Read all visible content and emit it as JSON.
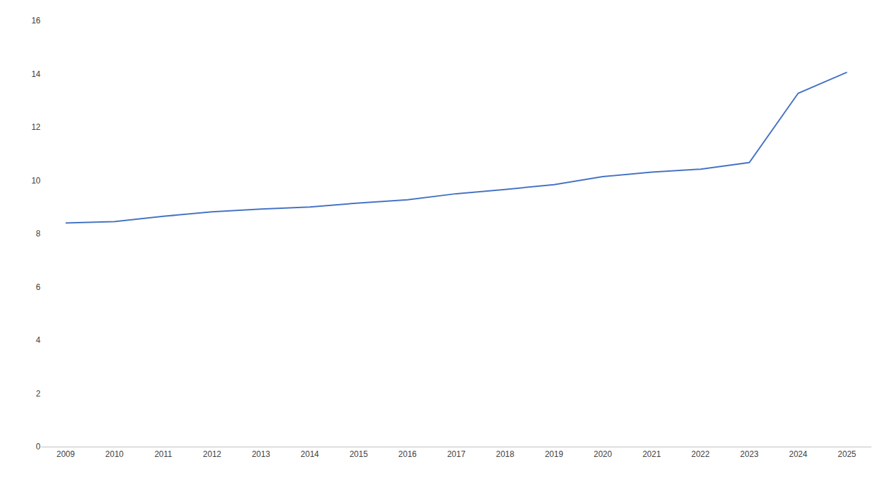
{
  "chart_data": {
    "type": "line",
    "x": [
      2009,
      2010,
      2011,
      2012,
      2013,
      2014,
      2015,
      2016,
      2017,
      2018,
      2019,
      2020,
      2021,
      2022,
      2023,
      2024,
      2025
    ],
    "values": [
      8.4,
      8.45,
      8.65,
      8.82,
      8.92,
      9.0,
      9.15,
      9.27,
      9.5,
      9.66,
      9.84,
      10.14,
      10.31,
      10.42,
      10.67,
      13.27,
      14.06
    ],
    "color": "#4472C4",
    "xlim": [
      2008.5,
      2025.5
    ],
    "xticks": [
      2009,
      2010,
      2011,
      2012,
      2013,
      2014,
      2015,
      2016,
      2017,
      2018,
      2019,
      2020,
      2021,
      2022,
      2023,
      2024,
      2025
    ],
    "ylim": [
      0,
      16
    ],
    "yticks": [
      0,
      2,
      4,
      6,
      8,
      10,
      12,
      14,
      16
    ],
    "grid": false
  }
}
